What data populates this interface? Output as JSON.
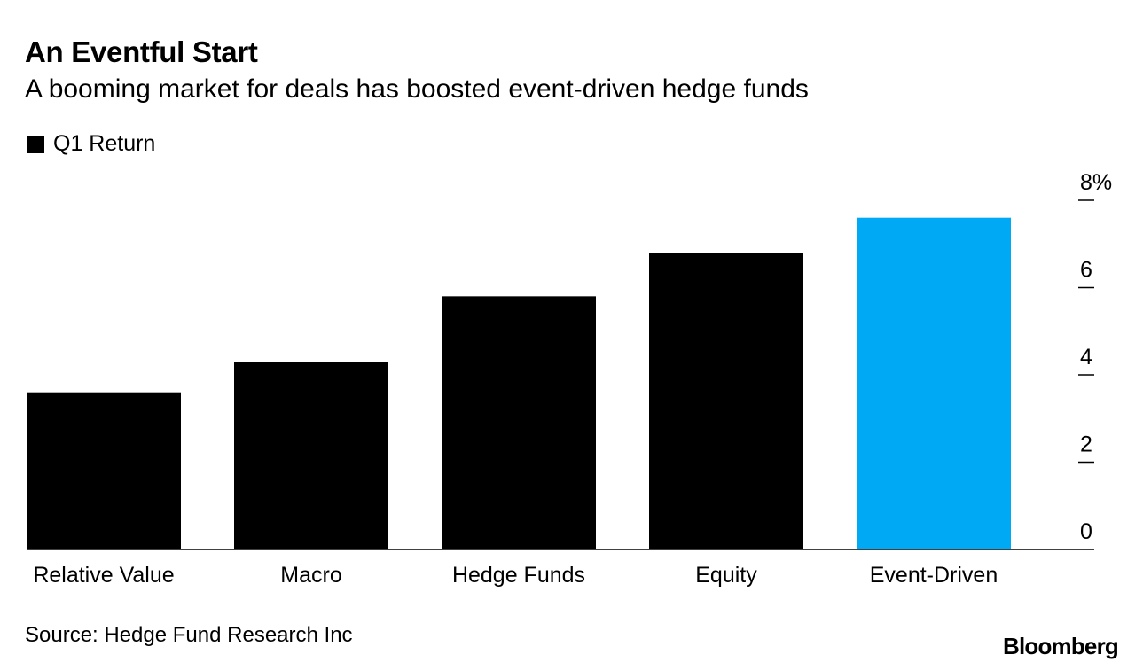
{
  "header": {
    "title": "An Eventful Start",
    "subtitle": "A booming market for deals has boosted event-driven hedge funds"
  },
  "legend": {
    "label": "Q1 Return"
  },
  "footer": {
    "source": "Source: Hedge Fund Research Inc",
    "brand": "Bloomberg"
  },
  "colors": {
    "default_bar": "#000000",
    "highlight_bar": "#00a9f4"
  },
  "chart_data": {
    "type": "bar",
    "title": "An Eventful Start",
    "subtitle": "A booming market for deals has boosted event-driven hedge funds",
    "categories": [
      "Relative Value",
      "Macro",
      "Hedge Funds",
      "Equity",
      "Event-Driven"
    ],
    "series": [
      {
        "name": "Q1 Return",
        "values": [
          3.6,
          4.3,
          5.8,
          6.8,
          7.6
        ]
      }
    ],
    "highlight": "Event-Driven",
    "y_ticks": [
      "0",
      "2",
      "4",
      "6",
      "8%"
    ],
    "y_tick_values": [
      0,
      2,
      4,
      6,
      8
    ],
    "ylim": [
      0,
      8
    ],
    "y_axis_position": "right",
    "xlabel": "",
    "ylabel": "",
    "grid": false
  }
}
